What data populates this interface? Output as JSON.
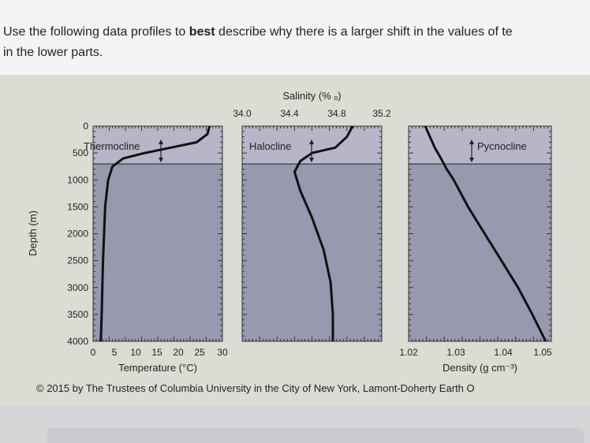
{
  "question": {
    "line1_before": "Use the following data profiles to ",
    "line1_bold": "best",
    "line1_after": " describe why there is a larger shift in the values of te",
    "line2": "in the lower parts."
  },
  "figure": {
    "copyright": "© 2015 by The Trustees of Columbia University in the City of New York, Lamont-Doherty Earth O",
    "colors": {
      "surface": "#b6b6c8",
      "deep": "#9898ae",
      "curve": "#111111",
      "background": "#dcdcd4"
    }
  },
  "chart_data": [
    {
      "type": "line",
      "title": "",
      "xlabel": "Temperature (°C)",
      "ylabel": "Depth (m)",
      "xlim": [
        0,
        30
      ],
      "ylim": [
        4000,
        0
      ],
      "x_ticks": [
        "0",
        "5",
        "10",
        "15",
        "20",
        "25",
        "30"
      ],
      "y_ticks": [
        "0",
        "500",
        "1000",
        "1500",
        "2000",
        "2500",
        "3000",
        "3500",
        "4000"
      ],
      "annotation": "Thermocline",
      "layer_depth": [
        0,
        700
      ],
      "series": [
        {
          "x": [
            27,
            26.5,
            24,
            18,
            12,
            7,
            4.5,
            3.5,
            2.8,
            2.3,
            2,
            1.8
          ],
          "y": [
            0,
            150,
            300,
            400,
            500,
            600,
            750,
            1000,
            1500,
            2500,
            3500,
            4000
          ]
        }
      ]
    },
    {
      "type": "line",
      "title": "Salinity (% ₒ)",
      "xlabel": "",
      "ylabel": "",
      "xlim": [
        34.0,
        35.2
      ],
      "ylim": [
        4000,
        0
      ],
      "x_ticks": [
        "34.0",
        "34.4",
        "34.8",
        "35.2"
      ],
      "annotation": "Halocline",
      "layer_depth": [
        0,
        700
      ],
      "series": [
        {
          "x": [
            34.95,
            34.9,
            34.8,
            34.6,
            34.5,
            34.45,
            34.5,
            34.6,
            34.7,
            34.76,
            34.78,
            34.78
          ],
          "y": [
            0,
            200,
            400,
            500,
            650,
            850,
            1200,
            1700,
            2300,
            2900,
            3500,
            4000
          ]
        }
      ]
    },
    {
      "type": "line",
      "title": "",
      "xlabel": "Density (g cm⁻³)",
      "ylabel": "",
      "xlim": [
        1.02,
        1.05
      ],
      "ylim": [
        4000,
        0
      ],
      "x_ticks": [
        "1.02",
        "1.03",
        "1.04",
        "1.05"
      ],
      "annotation": "Pycnocline",
      "layer_depth": [
        0,
        700
      ],
      "series": [
        {
          "x": [
            1.0235,
            1.0245,
            1.0255,
            1.0268,
            1.028,
            1.0295,
            1.0325,
            1.036,
            1.0395,
            1.043,
            1.046,
            1.0488
          ],
          "y": [
            0,
            200,
            400,
            600,
            800,
            1000,
            1500,
            2000,
            2500,
            3000,
            3500,
            4000
          ]
        }
      ]
    }
  ]
}
